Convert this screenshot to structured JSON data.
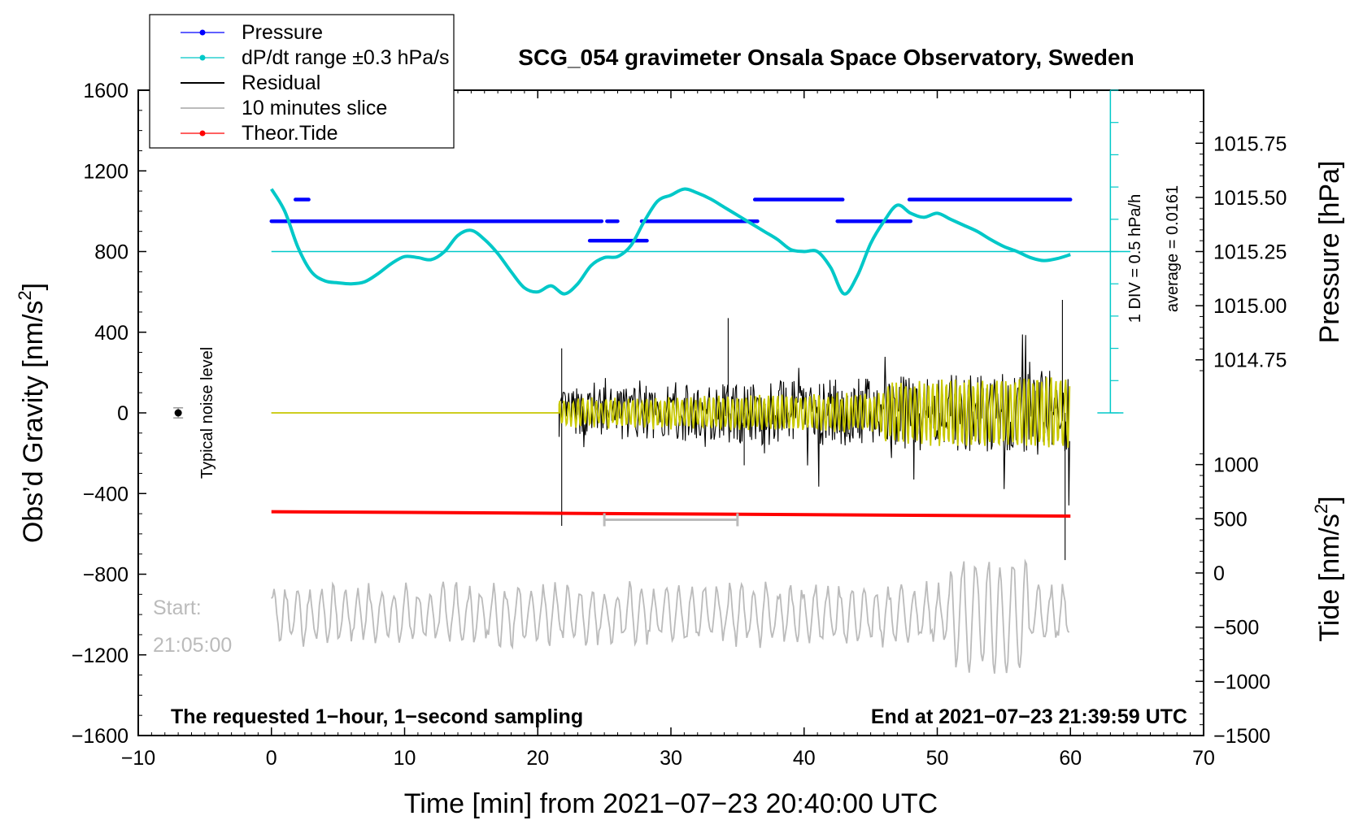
{
  "chart_data": {
    "type": "line",
    "title": "SCG_054 gravimeter Onsala Space Observatory, Sweden",
    "xlabel": "Time [min] from 2021−07−23 20:40:00 UTC",
    "ylabel_left": "Obs’d Gravity [nm/s",
    "ylabel_left_sup": "2",
    "ylabel_left_close": "]",
    "ylabel_right_pressure": "Pressure [hPa]",
    "ylabel_right_tide": "Tide [nm/s",
    "ylabel_right_tide_sup": "2",
    "ylabel_right_tide_close": "]",
    "xlim": [
      -10,
      70
    ],
    "ylim_left": [
      -1600,
      1600
    ],
    "x_ticks": [
      -10,
      0,
      10,
      20,
      30,
      40,
      50,
      60,
      70
    ],
    "x_tick_labels": [
      "−10",
      "0",
      "10",
      "20",
      "30",
      "40",
      "50",
      "60",
      "70"
    ],
    "y_ticks": [
      1600,
      1200,
      800,
      400,
      0,
      -400,
      -800,
      -1200,
      -1600
    ],
    "y_tick_labels": [
      "1600",
      "1200",
      "800",
      "400",
      "0",
      "−400",
      "−800",
      "−1200",
      "−1600"
    ],
    "pressure_ticks": [
      1015.75,
      1015.5,
      1015.25,
      1015.0,
      1014.75
    ],
    "pressure_tick_labels": [
      "1015.75",
      "1015.50",
      "1015.25",
      "1015.00",
      "1014.75"
    ],
    "pressure_axis_map": {
      "pressure_at_800": 1015.25,
      "gravity_units_per_hPa": 1074
    },
    "tide_ticks": [
      1000,
      500,
      0,
      -500,
      -1000,
      -1500
    ],
    "tide_tick_labels": [
      "1000",
      "500",
      "0",
      "−500",
      "−1000",
      "−1500"
    ],
    "tide_axis_map": {
      "tide_at_minus1600": -1500,
      "gravity_units_per_tide_unit": 0.5374
    },
    "legend": {
      "position": "top-left",
      "entries": [
        {
          "label": "Pressure",
          "color": "#0000ff",
          "style": "line-dot"
        },
        {
          "label": "dP/dt range ±0.3 hPa/s",
          "color": "#00c8c8",
          "style": "line-dot"
        },
        {
          "label": "Residual",
          "color": "#000000",
          "style": "line"
        },
        {
          "label": "10 minutes slice",
          "color": "#bbbbbb",
          "style": "line"
        },
        {
          "label": "Theor.Tide",
          "color": "#ff0000",
          "style": "line-dot"
        }
      ]
    },
    "series": [
      {
        "name": "Pressure",
        "axis": "pressure",
        "color": "#0000ff",
        "segments": [
          {
            "x": [
              0,
              24.8
            ],
            "p": 1015.39
          },
          {
            "x": [
              1.8,
              2.8
            ],
            "p": 1015.49
          },
          {
            "x": [
              25.2,
              26.0
            ],
            "p": 1015.39
          },
          {
            "x": [
              23.9,
              28.2
            ],
            "p": 1015.3
          },
          {
            "x": [
              27.8,
              36.5
            ],
            "p": 1015.39
          },
          {
            "x": [
              36.3,
              42.9
            ],
            "p": 1015.49
          },
          {
            "x": [
              42.5,
              48.0
            ],
            "p": 1015.39
          },
          {
            "x": [
              47.9,
              60.0
            ],
            "p": 1015.49
          }
        ]
      },
      {
        "name": "dP/dt range ±0.3 hPa/s",
        "axis": "left",
        "color": "#00c8c8",
        "x": [
          0,
          1,
          2,
          3,
          4,
          5,
          6,
          7,
          8,
          9,
          10,
          11,
          12,
          13,
          14,
          15,
          16,
          17,
          18,
          19,
          20,
          21,
          22,
          23,
          24,
          25,
          26,
          27,
          28,
          29,
          30,
          31,
          32,
          33,
          34,
          35,
          36,
          37,
          38,
          39,
          40,
          41,
          42,
          43,
          44,
          45,
          46,
          47,
          48,
          49,
          50,
          51,
          52,
          53,
          54,
          55,
          56,
          57,
          58,
          59,
          60
        ],
        "values": [
          1110,
          1000,
          820,
          700,
          655,
          645,
          640,
          650,
          690,
          740,
          775,
          770,
          760,
          800,
          880,
          905,
          860,
          790,
          700,
          620,
          600,
          630,
          590,
          640,
          730,
          770,
          775,
          830,
          950,
          1050,
          1080,
          1110,
          1090,
          1060,
          1020,
          980,
          940,
          900,
          860,
          810,
          800,
          800,
          720,
          590,
          680,
          840,
          950,
          1030,
          990,
          970,
          990,
          960,
          930,
          900,
          860,
          825,
          800,
          770,
          755,
          765,
          785
        ]
      },
      {
        "name": "Residual",
        "axis": "left",
        "color": "#000000",
        "x_range": [
          0,
          60
        ],
        "quiet_until": 21.6,
        "annotations": [
          {
            "x": 21.8,
            "y": 320
          },
          {
            "x": 21.8,
            "y": -560
          },
          {
            "x": 34.3,
            "y": 470
          },
          {
            "x": 35.5,
            "y": -260
          },
          {
            "x": 59.4,
            "y": 560
          },
          {
            "x": 59.6,
            "y": -730
          }
        ]
      },
      {
        "name": "Theor.Tide",
        "axis": "left",
        "color": "#ff0000",
        "x": [
          0,
          60
        ],
        "values": [
          -490,
          -512
        ]
      },
      {
        "name": "10 minutes slice",
        "axis": "left",
        "color": "#bbbbbb",
        "x_range": [
          0,
          60
        ],
        "baseline": -1000
      }
    ],
    "pressure_scale_bar": {
      "x": 63,
      "y_range": [
        0,
        1600
      ],
      "color": "#00c8c8",
      "label_1": "1 DIV = 0.5 hPa/h",
      "label_2": "average = 0.0161"
    },
    "average_line": {
      "y": 800,
      "x_range": [
        0,
        64.5
      ],
      "color": "#00c8c8"
    },
    "slice_bracket": {
      "x_range": [
        25,
        35
      ],
      "y": -530,
      "color": "#bbbbbb"
    },
    "noise_marker": {
      "x": -7,
      "y": 0,
      "label": "Typical noise level"
    },
    "start_label_1": "Start:",
    "start_label_2": "21:05:00",
    "note_left": "The requested 1−hour, 1−second sampling",
    "note_right": "End at 2021−07−23 21:39:59 UTC"
  }
}
